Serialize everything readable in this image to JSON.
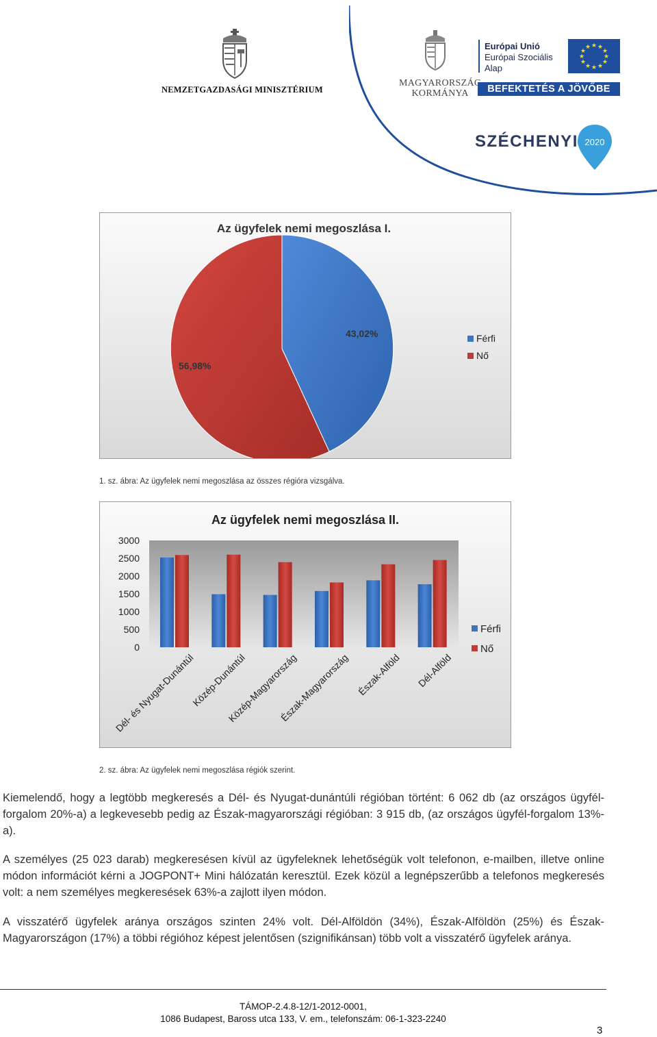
{
  "header": {
    "ministry": "NEMZETGAZDASÁGI MINISZTÉRIUM",
    "gov_line1": "Magyarország",
    "gov_line2": "Kormánya",
    "eu_line1": "Európai Unió",
    "eu_line2": "Európai Szociális",
    "eu_line3": "Alap",
    "invest_banner": "BEFEKTETÉS A JÖVŐBE",
    "szechenyi": "SZÉCHENYI",
    "szechenyi_year": "2020"
  },
  "chart1": {
    "chart_data": {
      "type": "pie",
      "title": "Az ügyfelek nemi megoszlása I.",
      "labels": [
        "Férfi",
        "Nő"
      ],
      "values": [
        43.02,
        56.98
      ],
      "data_labels": [
        "43,02%",
        "56,98%"
      ],
      "colors": [
        "#3d74c3",
        "#c23a34"
      ],
      "legend_position": "right"
    },
    "caption": "1. sz. ábra: Az ügyfelek nemi megoszlása az összes régióra vizsgálva."
  },
  "chart2": {
    "chart_data": {
      "type": "bar",
      "title": "Az ügyfelek nemi megoszlása II.",
      "categories": [
        "Dél- és Nyugat-Dunántúl",
        "Közép-Dunántúl",
        "Közép-Magyarország",
        "Észak-Magyarország",
        "Észak-Alföld",
        "Dél-Alföld"
      ],
      "series": [
        {
          "name": "Férfi",
          "values": [
            2520,
            1490,
            1470,
            1580,
            1880,
            1770
          ],
          "color": "#3d74c3"
        },
        {
          "name": "Nő",
          "values": [
            2590,
            2600,
            2390,
            1820,
            2330,
            2450
          ],
          "color": "#c23a34"
        }
      ],
      "yticks": [
        "0",
        "500",
        "1000",
        "1500",
        "2000",
        "2500",
        "3000"
      ],
      "ylim": [
        0,
        3000
      ],
      "grid": false,
      "legend_position": "right"
    },
    "caption": "2. sz. ábra: Az ügyfelek nemi megoszlása régiók szerint."
  },
  "paragraphs": [
    "Kiemelendő, hogy a legtöbb megkeresés a Dél- és Nyugat-dunántúli régióban történt: 6 062 db (az országos ügyfél-forgalom 20%-a) a legkevesebb pedig az Észak-magyarországi régióban: 3 915 db, (az országos ügyfél-forgalom 13%-a).",
    "A személyes (25 023 darab) megkeresésen kívül az ügyfeleknek lehetőségük volt telefonon, e-mailben, illetve online módon információt kérni a JOGPONT+ Mini hálózatán keresztül. Ezek közül a legnépszerűbb a telefonos megkeresés volt: a nem személyes megkeresések 63%-a zajlott ilyen módon.",
    "A visszatérő ügyfelek aránya országos szinten 24% volt. Dél-Alföldön (34%), Észak-Alföldön (25%) és Észak-Magyarországon (17%) a többi régióhoz képest jelentősen (szignifikánsan) több volt a visszatérő ügyfelek aránya."
  ],
  "footer": {
    "line1": "TÁMOP-2.4.8-12/1-2012-0001,",
    "line2": "1086 Budapest, Baross utca 133, V. em., telefonszám: 06-1-323-2240",
    "page_number": "3"
  }
}
